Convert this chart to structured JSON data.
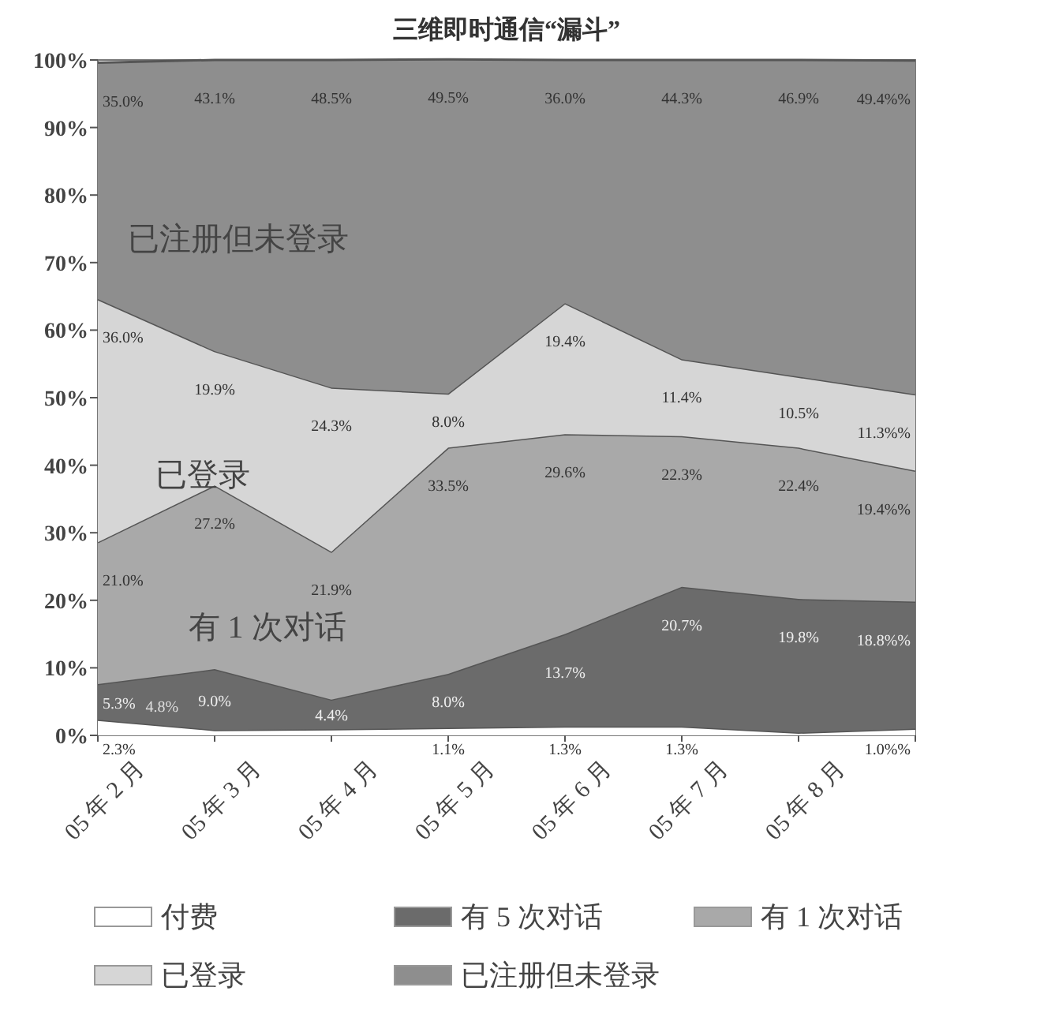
{
  "chart_data": {
    "type": "area",
    "stacked": true,
    "title": "三维即时通信“漏斗”",
    "categories": [
      "05 年 2 月",
      "05 年 3 月",
      "05 年 4 月",
      "05 年 5 月",
      "05 年 6 月",
      "05 年 7 月",
      "05 年 8 月",
      null
    ],
    "series": [
      {
        "name": "付费",
        "color": "#ffffff",
        "values": [
          2.3,
          0.8,
          0.9,
          1.1,
          1.3,
          1.3,
          0.4,
          1.0
        ],
        "value_labels": [
          "2.3%",
          null,
          null,
          "1.1%",
          "1.3%",
          "1.3%",
          null,
          "1.0%%"
        ]
      },
      {
        "name": "有 5 次对话",
        "color": "#6b6b6b",
        "values": [
          5.3,
          9.0,
          4.4,
          8.0,
          13.7,
          20.7,
          19.8,
          18.8
        ],
        "value_labels": [
          "5.3%",
          "9.0%",
          "4.4%",
          "8.0%",
          "13.7%",
          "20.7%",
          "19.8%",
          "18.8%%"
        ]
      },
      {
        "name": "有 1 次对话",
        "color": "#a9a9a9",
        "values": [
          21.0,
          27.2,
          21.9,
          33.5,
          29.6,
          22.3,
          22.4,
          19.4
        ],
        "value_labels": [
          "21.0%",
          "27.2%",
          "21.9%",
          "33.5%",
          "29.6%",
          "22.3%",
          "22.4%",
          "19.4%%"
        ]
      },
      {
        "name": "已登录",
        "color": "#d6d6d6",
        "values": [
          36.0,
          19.9,
          24.3,
          8.0,
          19.4,
          11.4,
          10.5,
          11.3
        ],
        "value_labels": [
          "36.0%",
          "19.9%",
          "24.3%",
          "8.0%",
          "19.4%",
          "11.4%",
          "10.5%",
          "11.3%%"
        ]
      },
      {
        "name": "已注册但未登录",
        "color": "#8e8e8e",
        "values": [
          35.0,
          43.1,
          48.5,
          49.5,
          36.0,
          44.3,
          46.9,
          49.4
        ],
        "value_labels": [
          "35.0%",
          "43.1%",
          "48.5%",
          "49.5%",
          "36.0%",
          "44.3%",
          "46.9%",
          "49.4%%"
        ]
      }
    ],
    "ylim": [
      0,
      100
    ],
    "yticks": [
      {
        "value": 0,
        "label": "0%"
      },
      {
        "value": 10,
        "label": "10%"
      },
      {
        "value": 20,
        "label": "20%"
      },
      {
        "value": 30,
        "label": "30%"
      },
      {
        "value": 40,
        "label": "40%"
      },
      {
        "value": 50,
        "label": "50%"
      },
      {
        "value": 60,
        "label": "60%"
      },
      {
        "value": 70,
        "label": "70%"
      },
      {
        "value": 80,
        "label": "80%"
      },
      {
        "value": 90,
        "label": "90%"
      },
      {
        "value": 100,
        "label": "100%"
      }
    ],
    "annotations": [
      "已注册但未登录",
      "已登录",
      "有 1 次对话",
      "4.8%"
    ],
    "legend": "bottom"
  }
}
